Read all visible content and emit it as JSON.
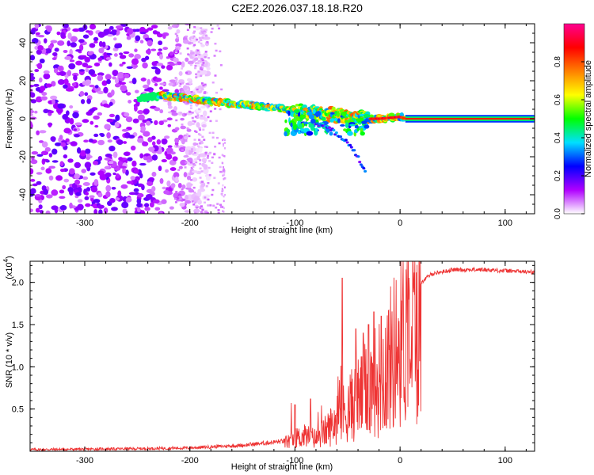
{
  "title": "C2E2.2026.037.18.18.R20",
  "chart_data": [
    {
      "type": "heatmap",
      "name": "spectrogram",
      "xlabel": "Height of straight line (km)",
      "ylabel": "Frequency (Hz)",
      "xlim": [
        -352,
        128
      ],
      "ylim": [
        -50,
        50
      ],
      "xticks": [
        -300,
        -200,
        -100,
        0,
        100
      ],
      "xtick_labels": [
        "-300",
        "-200",
        "-100",
        "0",
        "100"
      ],
      "yticks": [
        -40,
        -20,
        0,
        20,
        40
      ],
      "ytick_labels": [
        "-40",
        "-20",
        "0",
        "20",
        "40"
      ],
      "colorbar": {
        "label": "Normalized spectral amplitude",
        "range": [
          0,
          1
        ],
        "ticks": [
          0.0,
          0.2,
          0.4,
          0.6,
          0.8
        ],
        "tick_labels": [
          "0.0",
          "0.2",
          "0.4",
          "0.6",
          "0.8"
        ],
        "colors": [
          "#ffffff",
          "#b000ff",
          "#0000ff",
          "#00e0ff",
          "#00ff00",
          "#ffff00",
          "#ff8000",
          "#ff0000",
          "#ff0090"
        ]
      },
      "track": {
        "description": "dominant Doppler track",
        "x": [
          -245,
          -230,
          -210,
          -190,
          -170,
          -150,
          -130,
          -110,
          -90,
          -70,
          -55,
          -40,
          -30,
          -20,
          -10,
          0,
          5,
          30,
          60,
          100,
          128
        ],
        "y": [
          11,
          12,
          11.5,
          10,
          8.5,
          7.5,
          6.5,
          5,
          3.5,
          2.5,
          1.5,
          0.5,
          0,
          0,
          0.5,
          1,
          0,
          0,
          0,
          0,
          0
        ]
      },
      "secondary_track": {
        "x": [
          -80,
          -65,
          -50,
          -40,
          -32
        ],
        "y": [
          -2,
          -6,
          -12,
          -20,
          -30
        ]
      }
    },
    {
      "type": "line",
      "name": "snr",
      "xlabel": "Height of straight line (km)",
      "ylabel": "SNR (10 * v/v)",
      "y_multiplier": "(x10",
      "y_multiplier_exp": "4",
      "y_multiplier_close": ")",
      "xlim": [
        -352,
        128
      ],
      "ylim": [
        0,
        2.25
      ],
      "xticks": [
        -300,
        -200,
        -100,
        0,
        100
      ],
      "xtick_labels": [
        "-300",
        "-200",
        "-100",
        "0",
        "100"
      ],
      "yticks": [
        0.5,
        1.0,
        1.5,
        2.0
      ],
      "ytick_labels": [
        "0.5",
        "1.0",
        "1.5",
        "2.0"
      ],
      "series": [
        {
          "name": "SNR",
          "color": "#ee3333",
          "envelope_x": [
            -352,
            -250,
            -200,
            -150,
            -110,
            -100,
            -90,
            -80,
            -70,
            -60,
            -50,
            -40,
            -30,
            -20,
            -10,
            0,
            10,
            20,
            30,
            50,
            80,
            128
          ],
          "envelope_y": [
            0.02,
            0.03,
            0.04,
            0.07,
            0.12,
            0.18,
            0.22,
            0.18,
            0.3,
            0.45,
            0.6,
            0.75,
            0.9,
            1.05,
            1.3,
            1.6,
            1.8,
            2.0,
            2.1,
            2.15,
            2.15,
            2.12
          ],
          "peaks_x": [
            -100,
            -85,
            -55,
            -42,
            -35,
            -30,
            -25,
            -18
          ],
          "peaks_y": [
            0.55,
            0.62,
            2.05,
            1.45,
            1.4,
            1.5,
            1.65,
            1.6
          ]
        }
      ]
    }
  ]
}
